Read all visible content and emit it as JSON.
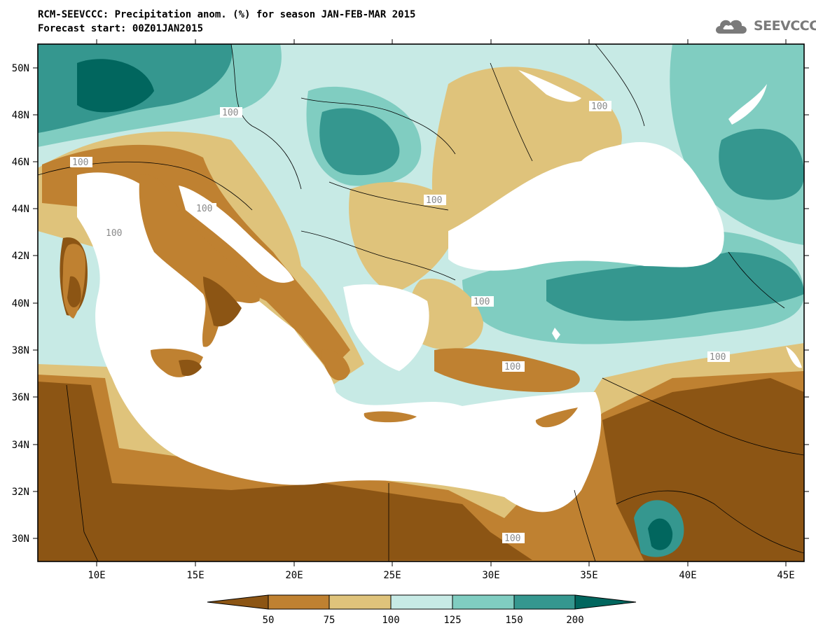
{
  "title": {
    "line1": "RCM-SEEVCCC: Precipitation anom. (%) for season JAN-FEB-MAR 2015",
    "line2": "Forecast start: 00Z01JAN2015"
  },
  "logo": {
    "text": "SEEVCCC",
    "icon": "cloud-logo-icon"
  },
  "axes": {
    "lat_labels": [
      "50N",
      "48N",
      "46N",
      "44N",
      "42N",
      "40N",
      "38N",
      "36N",
      "34N",
      "32N",
      "30N"
    ],
    "lon_labels": [
      "10E",
      "15E",
      "20E",
      "25E",
      "30E",
      "35E",
      "40E",
      "45E"
    ]
  },
  "contour_labels": [
    "100",
    "100",
    "100",
    "100",
    "100",
    "100",
    "100",
    "100",
    "100",
    "100"
  ],
  "colorbar": {
    "ticks": [
      "50",
      "75",
      "100",
      "125",
      "150",
      "200"
    ],
    "colors": [
      "#8c5514",
      "#bf8131",
      "#dfc37b",
      "#c7eae5",
      "#80cdc1",
      "#35978f",
      "#01665e"
    ]
  },
  "colors": {
    "sea": "#ffffff",
    "below_50": "#8c5514",
    "c50_75": "#bf8131",
    "c75_100": "#dfc37b",
    "c100_125": "#c7eae5",
    "c125_150": "#80cdc1",
    "c150_200": "#35978f",
    "above_200": "#01665e"
  }
}
